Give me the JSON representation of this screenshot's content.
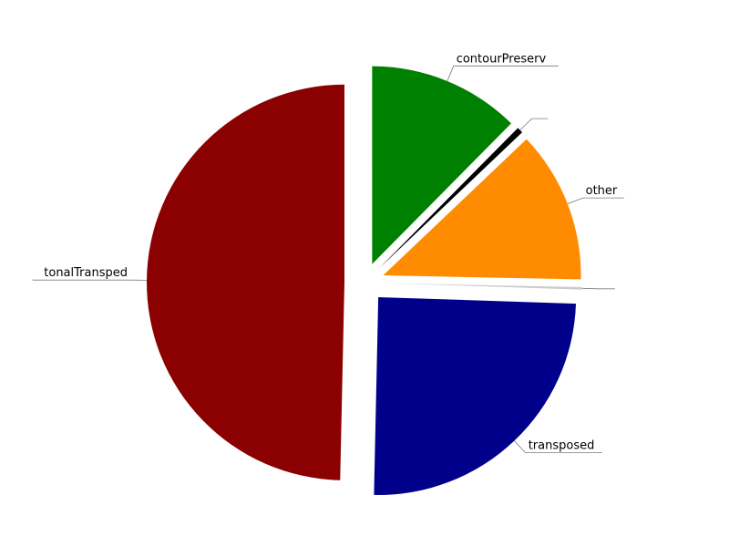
{
  "chart_data": {
    "type": "pie",
    "slices": [
      {
        "label": "contourPreserv",
        "value": 12.5,
        "color": "#008000"
      },
      {
        "label": "",
        "value": 0.5,
        "color": "#000000"
      },
      {
        "label": "other",
        "value": 12.5,
        "color": "#ff8c00"
      },
      {
        "label": "",
        "value": 0.2,
        "color": "#cccccc"
      },
      {
        "label": "transposed",
        "value": 25,
        "color": "#00008b"
      },
      {
        "label": "tonalTransped",
        "value": 50,
        "color": "#8b0000"
      }
    ],
    "exploded": true,
    "legend": "none"
  }
}
